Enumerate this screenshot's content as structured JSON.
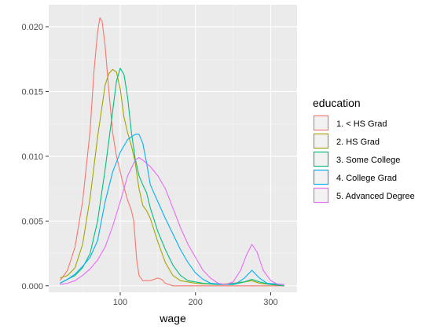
{
  "chart_data": {
    "type": "line",
    "xlabel": "wage",
    "ylabel": "",
    "xlim": [
      5,
      335
    ],
    "ylim": [
      -0.0005,
      0.0217
    ],
    "x_ticks": [
      100,
      200,
      300
    ],
    "y_ticks": [
      0.0,
      0.005,
      0.01,
      0.015,
      0.02
    ],
    "x_tick_labels": [
      "100",
      "200",
      "300"
    ],
    "y_tick_labels": [
      "0.000",
      "0.005",
      "0.010",
      "0.015",
      "0.020"
    ],
    "grid": true,
    "legend": {
      "title": "education",
      "position": "right"
    },
    "series": [
      {
        "name": "1. < HS Grad",
        "color": "#F8766D",
        "points": [
          [
            20,
            0.0004
          ],
          [
            30,
            0.0012
          ],
          [
            40,
            0.003
          ],
          [
            50,
            0.0065
          ],
          [
            60,
            0.012
          ],
          [
            65,
            0.0165
          ],
          [
            70,
            0.0196
          ],
          [
            73,
            0.0207
          ],
          [
            76,
            0.0204
          ],
          [
            80,
            0.0185
          ],
          [
            85,
            0.015
          ],
          [
            90,
            0.0118
          ],
          [
            95,
            0.01
          ],
          [
            100,
            0.0088
          ],
          [
            105,
            0.0076
          ],
          [
            110,
            0.0066
          ],
          [
            115,
            0.0058
          ],
          [
            118,
            0.005
          ],
          [
            120,
            0.0035
          ],
          [
            122,
            0.002
          ],
          [
            125,
            0.0008
          ],
          [
            130,
            0.0004
          ],
          [
            140,
            0.0004
          ],
          [
            150,
            0.0006
          ],
          [
            155,
            0.0005
          ],
          [
            160,
            0.0002
          ],
          [
            170,
            0.0
          ],
          [
            200,
            0.0
          ],
          [
            250,
            0.0
          ],
          [
            318,
            0.0
          ]
        ]
      },
      {
        "name": "2. HS Grad",
        "color": "#A3A500",
        "points": [
          [
            20,
            0.0006
          ],
          [
            30,
            0.0008
          ],
          [
            40,
            0.0014
          ],
          [
            50,
            0.0032
          ],
          [
            60,
            0.0068
          ],
          [
            70,
            0.0115
          ],
          [
            80,
            0.0155
          ],
          [
            85,
            0.0164
          ],
          [
            90,
            0.0167
          ],
          [
            95,
            0.0165
          ],
          [
            100,
            0.0152
          ],
          [
            105,
            0.013
          ],
          [
            110,
            0.0118
          ],
          [
            115,
            0.0108
          ],
          [
            120,
            0.0095
          ],
          [
            125,
            0.0075
          ],
          [
            130,
            0.0062
          ],
          [
            135,
            0.0058
          ],
          [
            140,
            0.0052
          ],
          [
            150,
            0.0034
          ],
          [
            160,
            0.0018
          ],
          [
            170,
            0.0008
          ],
          [
            180,
            0.0004
          ],
          [
            200,
            0.0002
          ],
          [
            230,
            0.0001
          ],
          [
            250,
            0.0002
          ],
          [
            265,
            0.0003
          ],
          [
            275,
            0.0004
          ],
          [
            285,
            0.0002
          ],
          [
            300,
            0.0001
          ],
          [
            318,
            0.0001
          ]
        ]
      },
      {
        "name": "3. Some College",
        "color": "#00BF7D",
        "points": [
          [
            20,
            0.0002
          ],
          [
            30,
            0.0005
          ],
          [
            40,
            0.0008
          ],
          [
            50,
            0.0014
          ],
          [
            60,
            0.0025
          ],
          [
            70,
            0.005
          ],
          [
            80,
            0.009
          ],
          [
            90,
            0.0135
          ],
          [
            95,
            0.0158
          ],
          [
            100,
            0.0168
          ],
          [
            105,
            0.0163
          ],
          [
            110,
            0.0145
          ],
          [
            115,
            0.0118
          ],
          [
            120,
            0.0098
          ],
          [
            125,
            0.0085
          ],
          [
            130,
            0.0078
          ],
          [
            135,
            0.0072
          ],
          [
            140,
            0.006
          ],
          [
            150,
            0.0042
          ],
          [
            160,
            0.0028
          ],
          [
            170,
            0.0016
          ],
          [
            180,
            0.0008
          ],
          [
            190,
            0.0004
          ],
          [
            210,
            0.0002
          ],
          [
            230,
            0.0001
          ],
          [
            250,
            0.0001
          ],
          [
            265,
            0.0003
          ],
          [
            275,
            0.0005
          ],
          [
            285,
            0.0003
          ],
          [
            300,
            0.0001
          ],
          [
            318,
            0.0
          ]
        ]
      },
      {
        "name": "4. College Grad",
        "color": "#00B0F6",
        "points": [
          [
            20,
            0.0002
          ],
          [
            30,
            0.0005
          ],
          [
            40,
            0.0009
          ],
          [
            50,
            0.0015
          ],
          [
            60,
            0.0022
          ],
          [
            70,
            0.0035
          ],
          [
            80,
            0.0065
          ],
          [
            90,
            0.0088
          ],
          [
            100,
            0.0103
          ],
          [
            110,
            0.0113
          ],
          [
            120,
            0.0117
          ],
          [
            125,
            0.0117
          ],
          [
            130,
            0.011
          ],
          [
            135,
            0.0095
          ],
          [
            140,
            0.0078
          ],
          [
            150,
            0.0065
          ],
          [
            160,
            0.0052
          ],
          [
            170,
            0.004
          ],
          [
            180,
            0.0028
          ],
          [
            190,
            0.0018
          ],
          [
            200,
            0.001
          ],
          [
            210,
            0.0005
          ],
          [
            220,
            0.0002
          ],
          [
            240,
            0.0001
          ],
          [
            255,
            0.0002
          ],
          [
            265,
            0.0006
          ],
          [
            275,
            0.0012
          ],
          [
            285,
            0.0006
          ],
          [
            295,
            0.0002
          ],
          [
            318,
            0.0001
          ]
        ]
      },
      {
        "name": "5. Advanced Degree",
        "color": "#E76BF3",
        "points": [
          [
            20,
            0.0001
          ],
          [
            30,
            0.0002
          ],
          [
            40,
            0.0004
          ],
          [
            50,
            0.0008
          ],
          [
            60,
            0.0013
          ],
          [
            70,
            0.002
          ],
          [
            80,
            0.003
          ],
          [
            90,
            0.0046
          ],
          [
            100,
            0.0065
          ],
          [
            110,
            0.0085
          ],
          [
            120,
            0.0097
          ],
          [
            125,
            0.0099
          ],
          [
            130,
            0.0097
          ],
          [
            140,
            0.0092
          ],
          [
            150,
            0.0085
          ],
          [
            160,
            0.0075
          ],
          [
            170,
            0.006
          ],
          [
            180,
            0.0045
          ],
          [
            190,
            0.0032
          ],
          [
            200,
            0.0022
          ],
          [
            210,
            0.0012
          ],
          [
            220,
            0.0006
          ],
          [
            230,
            0.0002
          ],
          [
            240,
            0.0001
          ],
          [
            250,
            0.0003
          ],
          [
            260,
            0.0012
          ],
          [
            268,
            0.0024
          ],
          [
            275,
            0.0032
          ],
          [
            282,
            0.0026
          ],
          [
            290,
            0.0012
          ],
          [
            300,
            0.0004
          ],
          [
            310,
            0.0001
          ],
          [
            318,
            0.0001
          ]
        ]
      }
    ]
  }
}
